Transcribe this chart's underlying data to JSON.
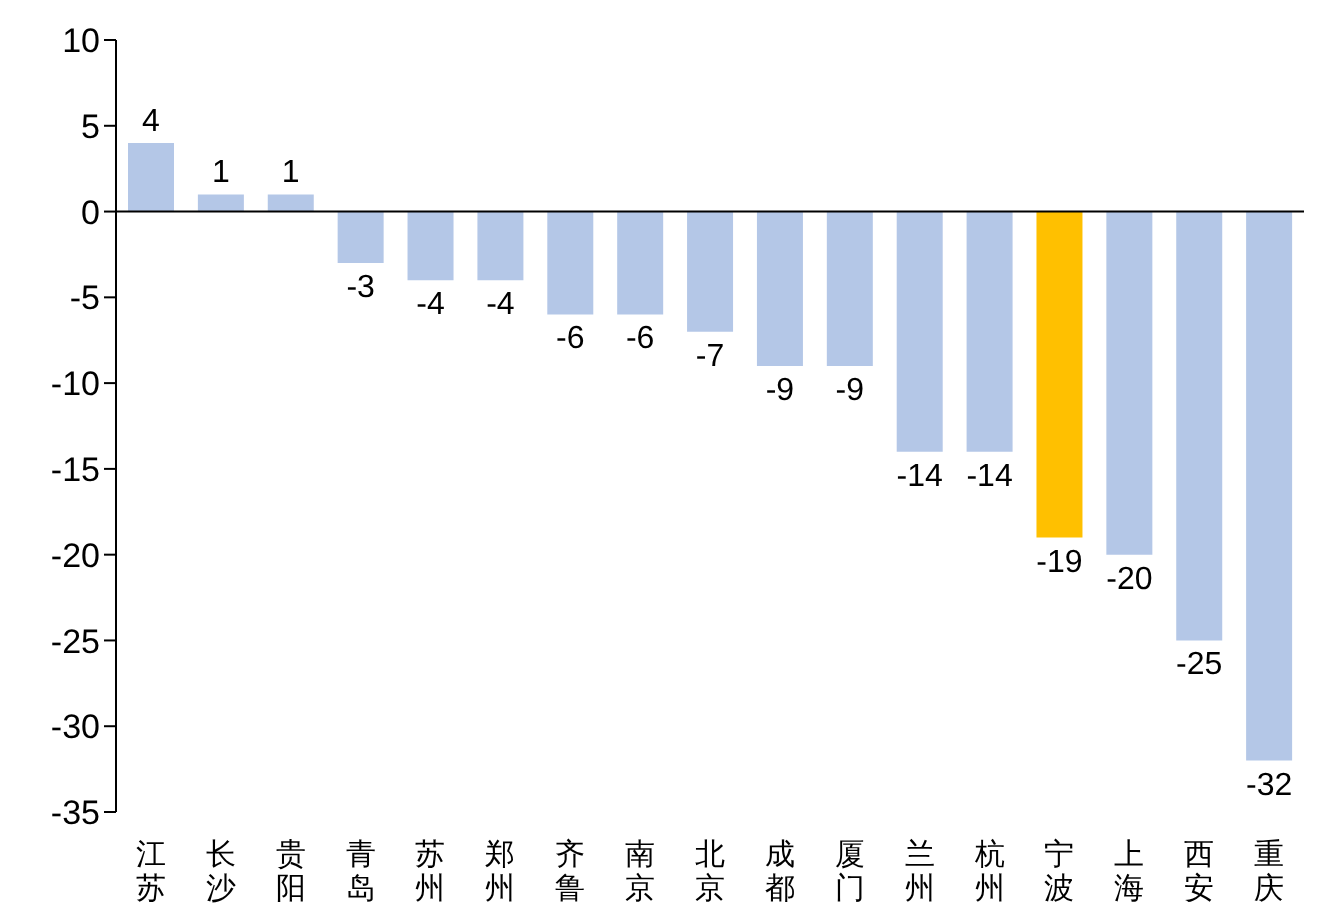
{
  "chart_data": {
    "type": "bar",
    "categories": [
      "江苏",
      "长沙",
      "贵阳",
      "青岛",
      "苏州",
      "郑州",
      "齐鲁",
      "南京",
      "北京",
      "成都",
      "厦门",
      "兰州",
      "杭州",
      "宁波",
      "上海",
      "西安",
      "重庆"
    ],
    "values": [
      4,
      1,
      1,
      -3,
      -4,
      -4,
      -6,
      -6,
      -7,
      -9,
      -9,
      -14,
      -14,
      -19,
      -20,
      -25,
      -32
    ],
    "colors": [
      "#b4c7e7",
      "#b4c7e7",
      "#b4c7e7",
      "#b4c7e7",
      "#b4c7e7",
      "#b4c7e7",
      "#b4c7e7",
      "#b4c7e7",
      "#b4c7e7",
      "#b4c7e7",
      "#b4c7e7",
      "#b4c7e7",
      "#b4c7e7",
      "#ffc000",
      "#b4c7e7",
      "#b4c7e7",
      "#b4c7e7"
    ],
    "ylim": [
      -35,
      10
    ],
    "yticks": [
      -35,
      -30,
      -25,
      -20,
      -15,
      -10,
      -5,
      0,
      5,
      10
    ],
    "ref_lines": [
      {
        "axis": "y",
        "value": 0,
        "color": "#000000"
      }
    ],
    "data_labels": true,
    "grid": false
  }
}
